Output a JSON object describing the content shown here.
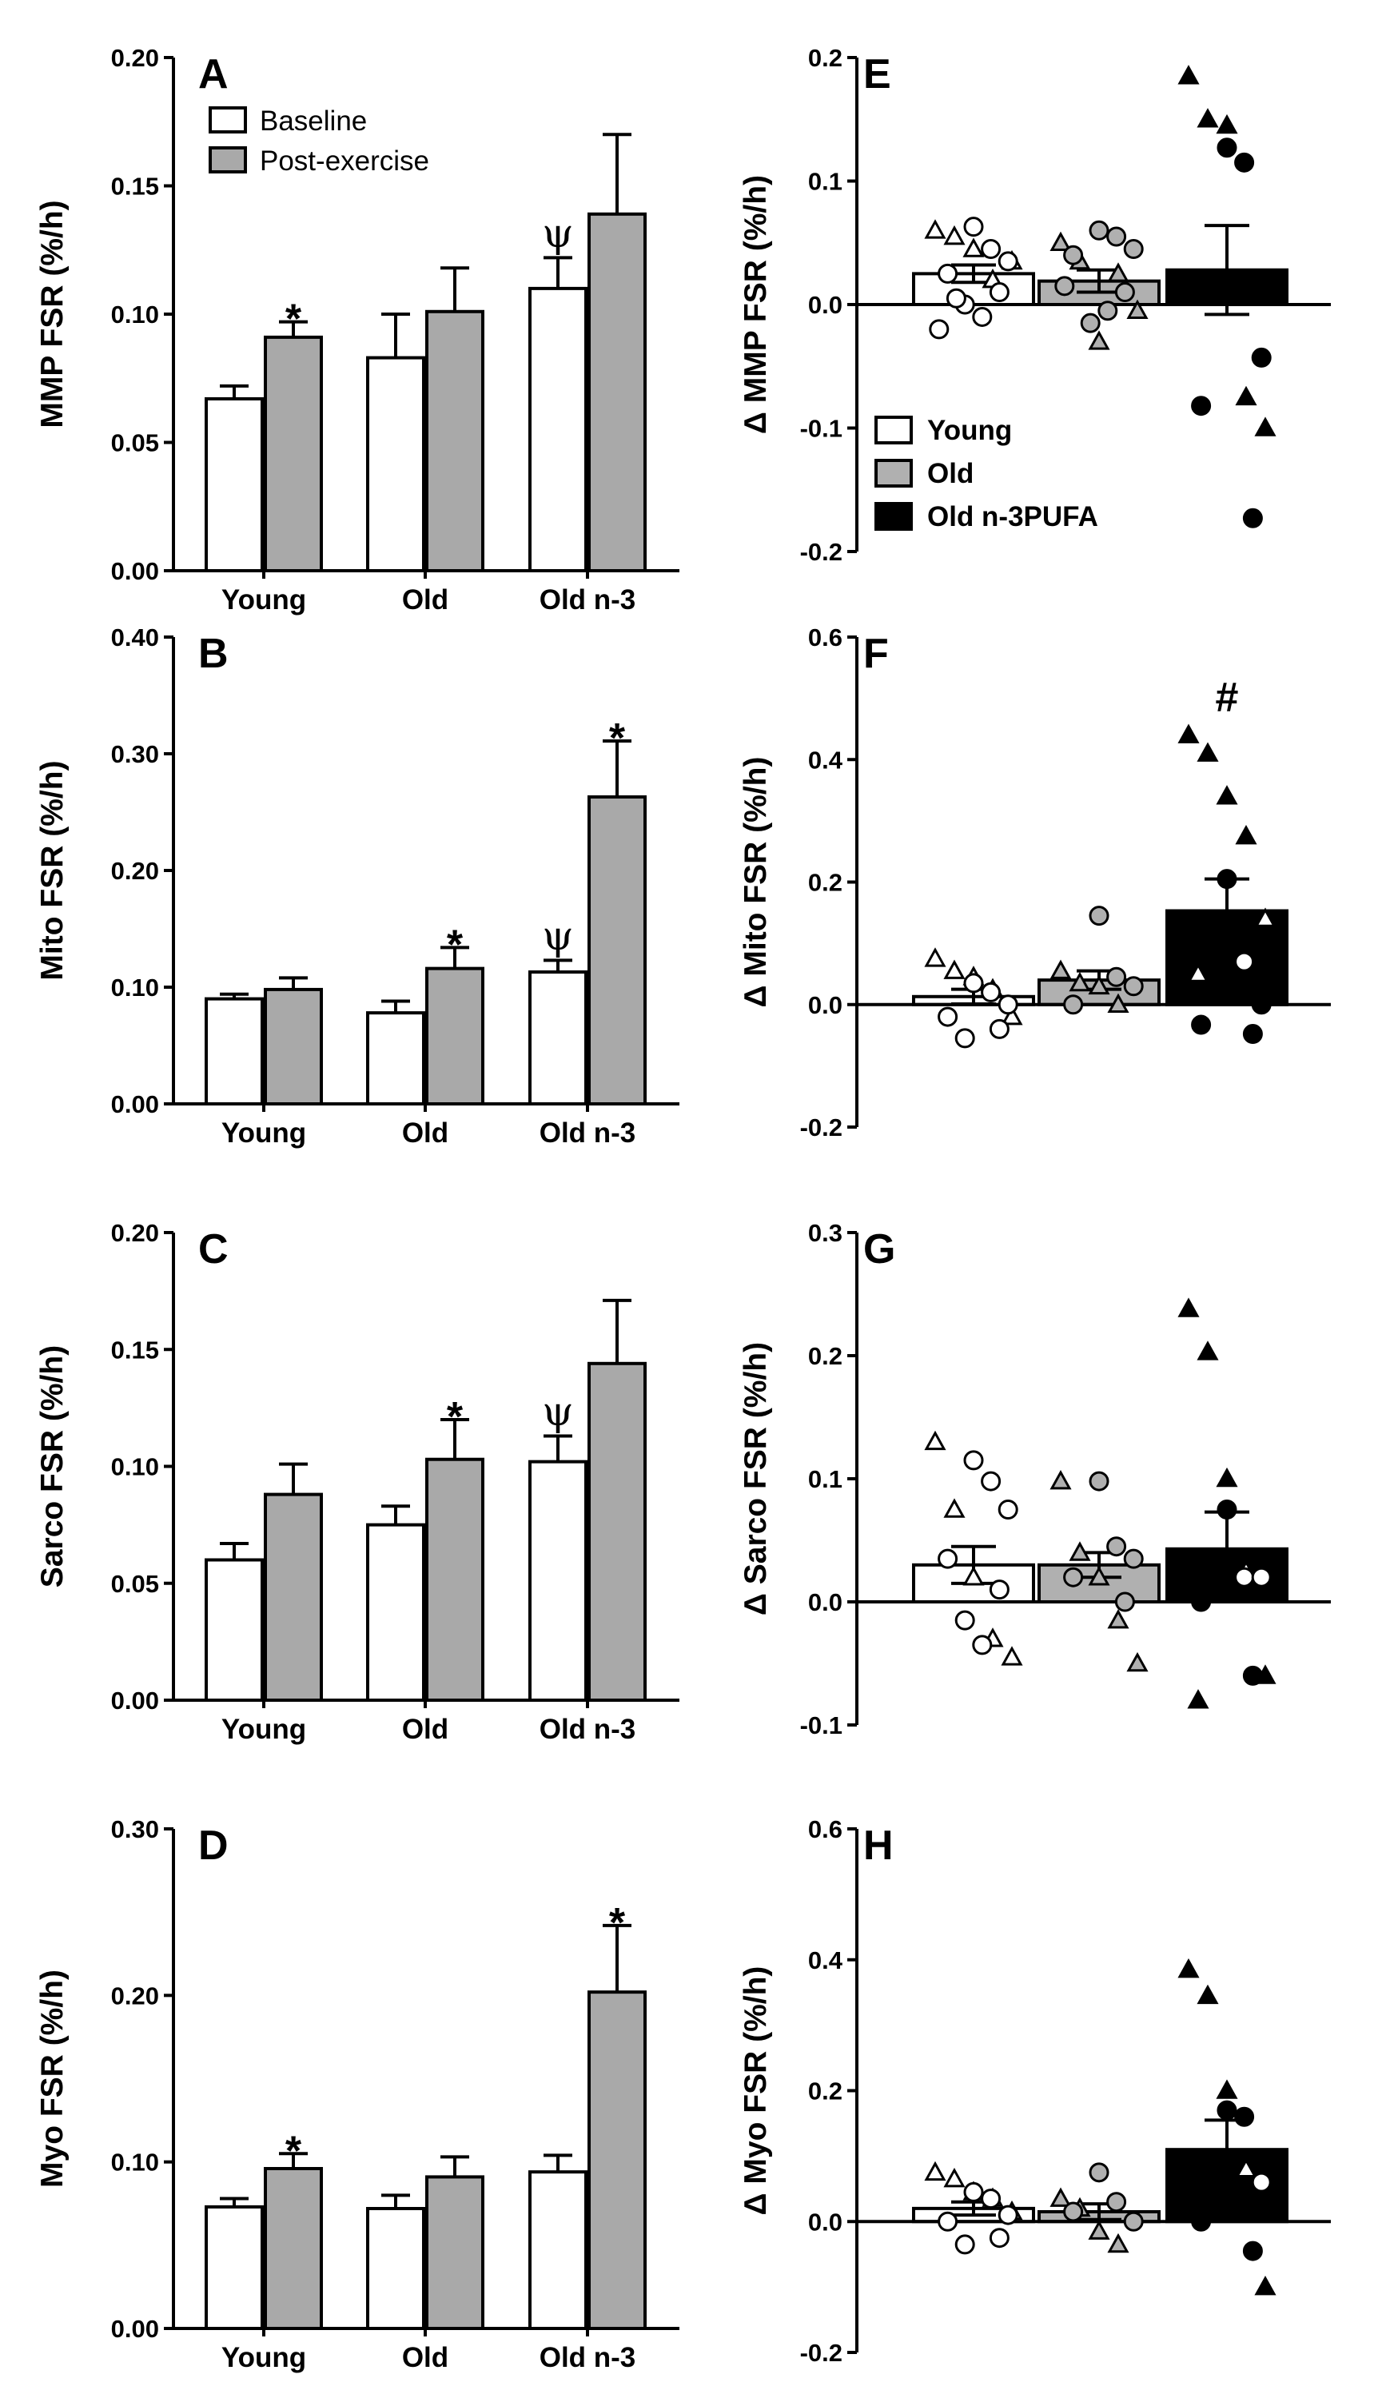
{
  "chart_data": [
    {
      "panel": "A",
      "type": "bar",
      "ylabel": "MMP FSR (%/h)",
      "ylim": [
        0,
        0.2
      ],
      "yticks": [
        "0.00",
        "0.05",
        "0.10",
        "0.15",
        "0.20"
      ],
      "categories": [
        "Young",
        "Old",
        "Old n-3"
      ],
      "legend": {
        "placement": "top-left"
      },
      "series": [
        {
          "name": "Baseline",
          "values": [
            0.067,
            0.083,
            0.11
          ],
          "errors": [
            0.005,
            0.017,
            0.012
          ]
        },
        {
          "name": "Post-exercise",
          "values": [
            0.091,
            0.101,
            0.139
          ],
          "errors": [
            0.006,
            0.017,
            0.031
          ]
        }
      ],
      "annotations": [
        {
          "text": "*",
          "category": "Young",
          "series": "Post-exercise"
        },
        {
          "text": "ψ",
          "category": "Old n-3",
          "series": "Baseline"
        }
      ]
    },
    {
      "panel": "B",
      "type": "bar",
      "ylabel": "Mito FSR (%/h)",
      "ylim": [
        0,
        0.4
      ],
      "yticks": [
        "0.00",
        "0.10",
        "0.20",
        "0.30",
        "0.40"
      ],
      "categories": [
        "Young",
        "Old",
        "Old n-3"
      ],
      "series": [
        {
          "name": "Baseline",
          "values": [
            0.09,
            0.078,
            0.113
          ],
          "errors": [
            0.004,
            0.01,
            0.01
          ]
        },
        {
          "name": "Post-exercise",
          "values": [
            0.098,
            0.116,
            0.263
          ],
          "errors": [
            0.01,
            0.018,
            0.048
          ]
        }
      ],
      "annotations": [
        {
          "text": "*",
          "category": "Old",
          "series": "Post-exercise"
        },
        {
          "text": "*",
          "category": "Old n-3",
          "series": "Post-exercise"
        },
        {
          "text": "ψ",
          "category": "Old n-3",
          "series": "Baseline"
        }
      ]
    },
    {
      "panel": "C",
      "type": "bar",
      "ylabel": "Sarco FSR (%/h)",
      "ylim": [
        0,
        0.2
      ],
      "yticks": [
        "0.00",
        "0.05",
        "0.10",
        "0.15",
        "0.20"
      ],
      "categories": [
        "Young",
        "Old",
        "Old n-3"
      ],
      "series": [
        {
          "name": "Baseline",
          "values": [
            0.06,
            0.075,
            0.102
          ],
          "errors": [
            0.007,
            0.008,
            0.011
          ]
        },
        {
          "name": "Post-exercise",
          "values": [
            0.088,
            0.103,
            0.144
          ],
          "errors": [
            0.013,
            0.017,
            0.027
          ]
        }
      ],
      "annotations": [
        {
          "text": "*",
          "category": "Old",
          "series": "Post-exercise"
        },
        {
          "text": "ψ",
          "category": "Old n-3",
          "series": "Baseline"
        }
      ]
    },
    {
      "panel": "D",
      "type": "bar",
      "ylabel": "Myo FSR (%/h)",
      "ylim": [
        0,
        0.3
      ],
      "yticks": [
        "0.00",
        "0.10",
        "0.20",
        "0.30"
      ],
      "categories": [
        "Young",
        "Old",
        "Old n-3"
      ],
      "series": [
        {
          "name": "Baseline",
          "values": [
            0.073,
            0.072,
            0.094
          ],
          "errors": [
            0.005,
            0.008,
            0.01
          ]
        },
        {
          "name": "Post-exercise",
          "values": [
            0.096,
            0.091,
            0.202
          ],
          "errors": [
            0.009,
            0.012,
            0.04
          ]
        }
      ],
      "annotations": [
        {
          "text": "*",
          "category": "Young",
          "series": "Post-exercise"
        },
        {
          "text": "*",
          "category": "Old n-3",
          "series": "Post-exercise"
        }
      ]
    },
    {
      "panel": "E",
      "type": "bar",
      "ylabel": "Δ MMP FSR (%/h)",
      "ylim": [
        -0.2,
        0.2
      ],
      "yticks": [
        "-0.2",
        "-0.1",
        "0.0",
        "0.1",
        "0.2"
      ],
      "legend": {
        "placement": "bottom-left",
        "entries": [
          "Young",
          "Old",
          "Old n-3PUFA"
        ]
      },
      "series": [
        {
          "name": "Young",
          "mean": 0.025,
          "sem": 0.007,
          "triangles": [
            0.06,
            0.055,
            0.045,
            0.02,
            0.035
          ],
          "circles": [
            0.063,
            0.045,
            0.035,
            0.025,
            0.01,
            0.0,
            -0.01,
            -0.02,
            0.005
          ]
        },
        {
          "name": "Old",
          "mean": 0.019,
          "sem": 0.009,
          "triangles": [
            0.05,
            0.035,
            -0.03,
            0.025,
            -0.005
          ],
          "circles": [
            0.06,
            0.055,
            0.045,
            0.04,
            0.01,
            -0.015,
            -0.005,
            0.015
          ]
        },
        {
          "name": "Old n3-PUFA",
          "mean": 0.028,
          "sem": 0.036,
          "triangles": [
            0.185,
            0.15,
            0.145,
            -0.075,
            -0.1
          ],
          "circles": [
            0.127,
            0.115,
            -0.043,
            -0.082,
            -0.173
          ]
        }
      ]
    },
    {
      "panel": "F",
      "type": "bar",
      "ylabel": "Δ Mito FSR (%/h)",
      "ylim": [
        -0.2,
        0.6
      ],
      "yticks": [
        "-0.2",
        "0.0",
        "0.2",
        "0.4",
        "0.6"
      ],
      "series": [
        {
          "name": "Young",
          "mean": 0.013,
          "sem": 0.012,
          "triangles": [
            0.075,
            0.055,
            0.045,
            0.025,
            -0.02
          ],
          "circles": [
            0.035,
            0.02,
            0.0,
            -0.02,
            -0.04,
            -0.055
          ]
        },
        {
          "name": "Old",
          "mean": 0.04,
          "sem": 0.015,
          "triangles": [
            0.055,
            0.035,
            0.03,
            0.0
          ],
          "circles": [
            0.145,
            0.045,
            0.03,
            0.0
          ]
        },
        {
          "name": "Old n3-PUFA",
          "mean": 0.153,
          "sem": 0.052,
          "triangles": [
            0.44,
            0.41,
            0.34,
            0.275,
            0.14,
            0.05
          ],
          "circles": [
            0.205,
            0.07,
            0.0,
            -0.033,
            -0.048
          ]
        }
      ],
      "annotations": [
        {
          "text": "#",
          "series": "Old n3-PUFA"
        }
      ]
    },
    {
      "panel": "G",
      "type": "bar",
      "ylabel": "Δ Sarco FSR (%/h)",
      "ylim": [
        -0.1,
        0.3
      ],
      "yticks": [
        "-0.1",
        "0.0",
        "0.1",
        "0.2",
        "0.3"
      ],
      "series": [
        {
          "name": "Young",
          "mean": 0.03,
          "sem": 0.015,
          "triangles": [
            0.13,
            0.075,
            0.02,
            -0.03,
            -0.045
          ],
          "circles": [
            0.115,
            0.098,
            0.075,
            0.035,
            0.01,
            -0.015,
            -0.035
          ]
        },
        {
          "name": "Old",
          "mean": 0.03,
          "sem": 0.01,
          "triangles": [
            0.098,
            0.04,
            0.02,
            -0.015,
            -0.05
          ],
          "circles": [
            0.098,
            0.045,
            0.035,
            0.02,
            0.0
          ]
        },
        {
          "name": "Old n3-PUFA",
          "mean": 0.043,
          "sem": 0.03,
          "triangles": [
            0.238,
            0.203,
            0.1,
            0.025,
            -0.06,
            -0.08
          ],
          "circles": [
            0.075,
            0.02,
            0.02,
            0.0,
            -0.06
          ]
        }
      ]
    },
    {
      "panel": "H",
      "type": "bar",
      "ylabel": "Δ Myo FSR (%/h)",
      "ylim": [
        -0.2,
        0.6
      ],
      "yticks": [
        "-0.2",
        "0.0",
        "0.2",
        "0.4",
        "0.6"
      ],
      "series": [
        {
          "name": "Young",
          "mean": 0.02,
          "sem": 0.01,
          "triangles": [
            0.075,
            0.065,
            0.045,
            0.035,
            0.015
          ],
          "circles": [
            0.045,
            0.035,
            0.01,
            0.0,
            -0.025,
            -0.035
          ]
        },
        {
          "name": "Old",
          "mean": 0.015,
          "sem": 0.012,
          "triangles": [
            0.035,
            0.02,
            -0.015,
            -0.035
          ],
          "circles": [
            0.075,
            0.03,
            0.0,
            0.015
          ]
        },
        {
          "name": "Old n3-PUFA",
          "mean": 0.11,
          "sem": 0.045,
          "triangles": [
            0.385,
            0.345,
            0.2,
            0.08,
            -0.1
          ],
          "circles": [
            0.17,
            0.16,
            0.06,
            0.0,
            -0.045
          ]
        }
      ]
    }
  ]
}
